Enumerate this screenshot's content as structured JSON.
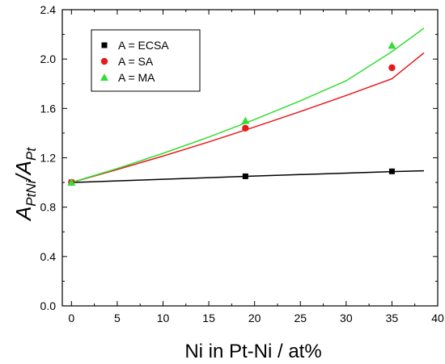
{
  "chart_data": {
    "type": "scatter",
    "title": "",
    "xlabel": "Ni in Pt-Ni / at%",
    "ylabel": {
      "parts": [
        {
          "text": "A",
          "sub": false
        },
        {
          "text": "PtNi",
          "sub": true
        },
        {
          "text": "/A",
          "sub": false
        },
        {
          "text": "Pt",
          "sub": true
        }
      ]
    },
    "xlim": [
      -1,
      40
    ],
    "ylim": [
      0.0,
      2.4
    ],
    "xticks": [
      0,
      5,
      10,
      15,
      20,
      25,
      30,
      35,
      40
    ],
    "yticks": [
      0.0,
      0.4,
      0.8,
      1.2,
      1.6,
      2.0,
      2.4
    ],
    "xtick_labels": [
      "0",
      "5",
      "10",
      "15",
      "20",
      "25",
      "30",
      "35",
      "40"
    ],
    "ytick_labels": [
      "0.0",
      "0.4",
      "0.8",
      "1.2",
      "1.6",
      "2.0",
      "2.4"
    ],
    "grid": false,
    "legend_position": "top-left",
    "series": [
      {
        "name": "A = ECSA",
        "marker": "square",
        "color": "#000000",
        "x": [
          0,
          19,
          35
        ],
        "y": [
          1.0,
          1.05,
          1.09
        ],
        "fit_x": [
          0,
          5,
          10,
          15,
          20,
          25,
          30,
          35,
          38.5
        ],
        "fit_y": [
          1.0,
          1.013,
          1.026,
          1.039,
          1.052,
          1.064,
          1.076,
          1.088,
          1.095
        ]
      },
      {
        "name": "A = SA",
        "marker": "circle",
        "color": "#e8191a",
        "x": [
          0,
          19,
          35
        ],
        "y": [
          1.0,
          1.44,
          1.93
        ],
        "fit_x": [
          0,
          5,
          10,
          15,
          20,
          25,
          30,
          35,
          38.5
        ],
        "fit_y": [
          1.0,
          1.105,
          1.214,
          1.329,
          1.45,
          1.575,
          1.705,
          1.84,
          2.05
        ]
      },
      {
        "name": "A = MA",
        "marker": "triangle",
        "color": "#33dd33",
        "x": [
          0,
          19,
          35
        ],
        "y": [
          1.0,
          1.5,
          2.11
        ],
        "fit_x": [
          0,
          5,
          10,
          15,
          20,
          25,
          30,
          35,
          38.5
        ],
        "fit_y": [
          1.0,
          1.113,
          1.236,
          1.368,
          1.51,
          1.662,
          1.824,
          2.06,
          2.25
        ]
      }
    ]
  }
}
